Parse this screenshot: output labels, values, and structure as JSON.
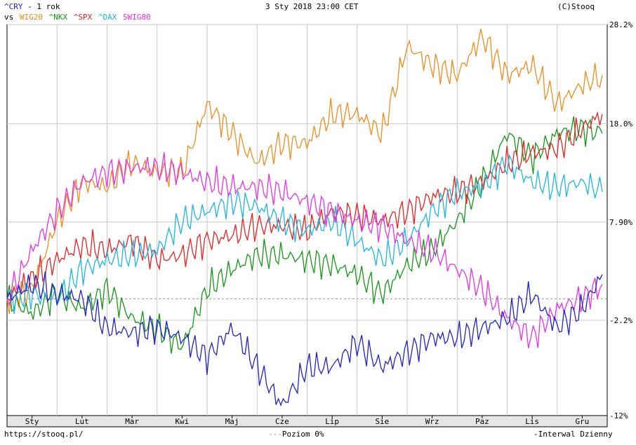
{
  "header": {
    "symbol": "^CRY",
    "period": " - 1 rok",
    "vs": "vs",
    "date": "3 Sty 2018 23:00 CET",
    "source": "(C)Stooq"
  },
  "footer": {
    "url": "https://stooq.pl/",
    "zero_level": "Poziom 0%",
    "interval": "Interwal Dzienny"
  },
  "colors": {
    "^CRY": "#2222cc",
    "WIG20": "#f08c1e",
    "^NKX": "#169616",
    "^SPX": "#e82222",
    "^DAX": "#1eb4e6",
    "SWIG80": "#e632e6",
    "grid": "#c8c8c8",
    "zero": "#999999"
  },
  "chart_data": {
    "type": "line",
    "title": "^CRY - 1 rok",
    "x_months": [
      "Sty",
      "Lut",
      "Mar",
      "Kwi",
      "Maj",
      "Cze",
      "Lip",
      "Sie",
      "Wrz",
      "Paz",
      "Lis",
      "Gru"
    ],
    "ylim": [
      -12,
      28.2
    ],
    "y_ticks": [
      28.2,
      18.0,
      7.9,
      -2.2,
      -12
    ],
    "y_tick_labels": [
      "28.2%",
      "18.0%",
      "7.90%",
      "-2.2%",
      "-12%"
    ],
    "zero_line": 0,
    "series": [
      {
        "name": "WIG20",
        "x": [
          0,
          0.5,
          1,
          1.5,
          2,
          2.5,
          3,
          3.5,
          4,
          4.5,
          5,
          5.5,
          6,
          6.5,
          7,
          7.5,
          8,
          8.5,
          9,
          9.5,
          10,
          10.5,
          11,
          11.5,
          11.9
        ],
        "values": [
          0,
          1,
          8,
          12,
          11.5,
          14,
          13,
          13,
          20,
          17,
          14,
          16,
          16,
          19,
          19,
          17,
          26,
          24,
          23,
          27,
          23,
          24,
          20,
          22,
          23
        ]
      },
      {
        "name": "^NKX",
        "x": [
          0,
          0.5,
          1,
          1.5,
          2,
          2.5,
          3,
          3.5,
          4,
          4.5,
          5,
          5.5,
          6,
          6.5,
          7,
          7.5,
          8,
          8.5,
          9,
          9.5,
          10,
          10.5,
          11,
          11.5,
          11.9
        ],
        "values": [
          0,
          -1.5,
          0.5,
          -1,
          1,
          -2,
          -3,
          -5,
          1,
          3,
          4.5,
          4.5,
          4,
          3.5,
          2.5,
          0.5,
          3.5,
          5,
          8,
          12,
          17,
          14.5,
          17,
          17.5,
          17
        ]
      },
      {
        "name": "^SPX",
        "x": [
          0,
          0.5,
          1,
          1.5,
          2,
          2.5,
          3,
          3.5,
          4,
          4.5,
          5,
          5.5,
          6,
          6.5,
          7,
          7.5,
          8,
          8.5,
          9,
          9.5,
          10,
          10.5,
          11,
          11.5,
          11.9
        ],
        "values": [
          0,
          2,
          4,
          5.5,
          5,
          6,
          4,
          4.5,
          6,
          6.5,
          7.5,
          7.5,
          7,
          9,
          8.5,
          8,
          9,
          10.5,
          11,
          12,
          14,
          15,
          15.5,
          17.5,
          19
        ]
      },
      {
        "name": "^DAX",
        "x": [
          0,
          0.5,
          1,
          1.5,
          2,
          2.5,
          3,
          3.5,
          4,
          4.5,
          5,
          5.5,
          6,
          6.5,
          7,
          7.5,
          8,
          8.5,
          9,
          9.5,
          10,
          10.5,
          11,
          11.5,
          11.9
        ],
        "values": [
          0,
          0.5,
          0,
          3,
          4,
          4.5,
          5,
          8,
          9,
          10,
          9.5,
          8,
          7,
          8,
          6,
          4,
          6,
          9,
          11,
          11.5,
          14,
          12,
          11.5,
          12,
          11
        ]
      },
      {
        "name": "SWIG80",
        "x": [
          0,
          0.5,
          1,
          1.5,
          2,
          2.5,
          3,
          3.5,
          4,
          4.5,
          5,
          5.5,
          6,
          6.5,
          7,
          7.5,
          8,
          8.5,
          9,
          9.5,
          10,
          10.5,
          11,
          11.5,
          11.9
        ],
        "values": [
          0,
          5,
          9,
          12,
          13,
          13.5,
          13.5,
          13,
          12,
          11.5,
          11.5,
          11,
          10,
          9,
          8,
          7.5,
          6,
          5,
          3,
          1,
          -2,
          -4,
          -1,
          0,
          1.5
        ]
      },
      {
        "name": "^CRY",
        "x": [
          0,
          0.5,
          1,
          1.5,
          2,
          2.5,
          3,
          3.5,
          4,
          4.5,
          5,
          5.5,
          6,
          6.5,
          7,
          7.5,
          8,
          8.5,
          9,
          9.5,
          10,
          10.5,
          11,
          11.5,
          11.9
        ],
        "values": [
          0,
          1.5,
          0.5,
          0,
          -3,
          -3.5,
          -3,
          -4,
          -6,
          -3,
          -7,
          -11,
          -7,
          -7,
          -4.5,
          -7,
          -5.5,
          -4,
          -4,
          -3,
          -2,
          0.5,
          -3,
          -1,
          2.5
        ]
      }
    ]
  }
}
